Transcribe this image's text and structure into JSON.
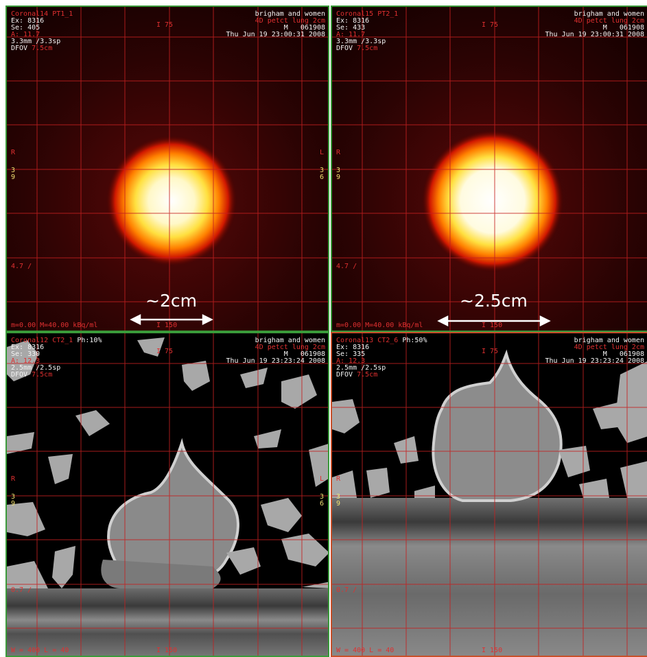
{
  "colors": {
    "overlay_text": "#e03030",
    "info_text": "#f4f4f4",
    "grid_line": "#c42020",
    "frame_active": "#3a9a3a",
    "frame_selected": "#c8502a",
    "pet_hot": "#fff6c0",
    "pet_warm": "#ff9a10",
    "pet_cold": "#2a0000"
  },
  "viewports": {
    "tl": {
      "series": "Coronal14 PT1_1",
      "ex": "Ex: 8316",
      "se": "Se: 405",
      "slice": "A: 11.7",
      "thickness": "3.3mm /3.3sp",
      "dfov_label": "DFOV",
      "dfov": "7.5cm",
      "inst_top": "I 75",
      "institution": "brigham and women",
      "study": "4D petct lung 2cm",
      "patient": "M   061908",
      "date": "Thu Jun 19 23:00:31 2008",
      "left_marker": "R",
      "left_sub": "3\n9",
      "right_marker": "L",
      "right_sub": "3\n6",
      "side_mark": "4.7 /",
      "window": "m=0.00 M=40.00 kBq/ml",
      "bottom": "I 150",
      "measure": "~2cm"
    },
    "tr": {
      "series": "Coronal15 PT2_1",
      "ex": "Ex: 8316",
      "se": "Se: 433",
      "slice": "A: 11.7",
      "thickness": "3.3mm /3.3sp",
      "dfov_label": "DFOV",
      "dfov": "7.5cm",
      "inst_top": "I 75",
      "institution": "brigham and women",
      "study": "4D petct lung 2cm",
      "patient": "M   061908",
      "date": "Thu Jun 19 23:00:31 2008",
      "left_marker": "R",
      "left_sub": "3\n9",
      "side_mark": "4.7 /",
      "window": "m=0.00 M=40.00 kBq/ml",
      "bottom": "I 150",
      "measure": "~2.5cm"
    },
    "bl": {
      "series": "Coronal12 CT2_1",
      "phase": "Ph:10%",
      "ex": "Ex: 8316",
      "se": "Se: 330",
      "slice": "A: 12.3",
      "thickness": "2.5mm /2.5sp",
      "dfov_label": "DFOV",
      "dfov": "7.5cm",
      "inst_top": "I 75",
      "institution": "brigham and women",
      "study": "4D petct lung 2cm",
      "patient": "M   061908",
      "date": "Thu Jun 19 23:23:24 2008",
      "left_marker": "R",
      "left_sub": "3\n9",
      "right_marker": "L",
      "right_sub": "3\n6",
      "side_mark": "0.7 /",
      "window": "W = 400 L = 40",
      "bottom": "I 150"
    },
    "br": {
      "series": "Coronal13 CT2_6",
      "phase": "Ph:50%",
      "ex": "Ex: 8316",
      "se": "Se: 335",
      "slice": "A: 12.3",
      "thickness": "2.5mm /2.5sp",
      "dfov_label": "DFOV",
      "dfov": "7.5cm",
      "inst_top": "I 75",
      "institution": "brigham and women",
      "study": "4D petct lung 2cm",
      "patient": "M   061908",
      "date": "Thu Jun 19 23:23:24 2008",
      "left_marker": "R",
      "left_sub": "3\n9",
      "side_mark": "0.7 /",
      "window": "W = 400 L = 40",
      "bottom": "I 150"
    }
  }
}
